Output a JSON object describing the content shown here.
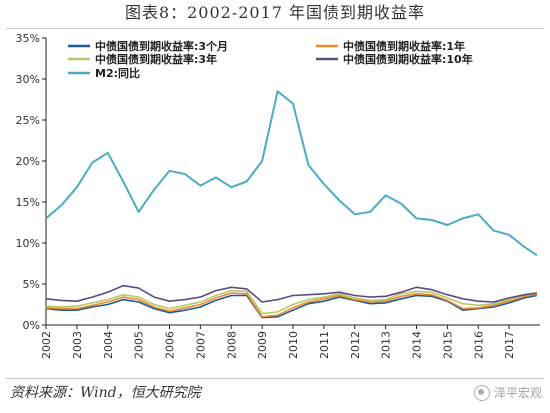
{
  "figure": {
    "title": "图表8：2002-2017 年国债到期收益率",
    "source": "资料来源：Wind，恒大研究院",
    "watermark": "泽平宏观"
  },
  "chart_data": {
    "type": "line",
    "title": "",
    "xlabel": "",
    "ylabel": "",
    "ylim": [
      0,
      35
    ],
    "yticks": [
      "0%",
      "5%",
      "10%",
      "15%",
      "20%",
      "25%",
      "30%",
      "35%"
    ],
    "ytick_values": [
      0,
      5,
      10,
      15,
      20,
      25,
      30,
      35
    ],
    "xlim": [
      2002,
      2018
    ],
    "xticks": [
      "2002",
      "2003",
      "2004",
      "2005",
      "2006",
      "2007",
      "2008",
      "2009",
      "2010",
      "2011",
      "2012",
      "2013",
      "2014",
      "2015",
      "2016",
      "2017"
    ],
    "xtick_values": [
      2002,
      2003,
      2004,
      2005,
      2006,
      2007,
      2008,
      2009,
      2010,
      2011,
      2012,
      2013,
      2014,
      2015,
      2016,
      2017
    ],
    "grid": false,
    "legend_position": "top",
    "x": [
      2002.0,
      2002.5,
      2003.0,
      2003.5,
      2004.0,
      2004.5,
      2005.0,
      2005.5,
      2006.0,
      2006.5,
      2007.0,
      2007.5,
      2008.0,
      2008.5,
      2009.0,
      2009.5,
      2010.0,
      2010.5,
      2011.0,
      2011.5,
      2012.0,
      2012.5,
      2013.0,
      2013.5,
      2014.0,
      2014.5,
      2015.0,
      2015.5,
      2016.0,
      2016.5,
      2017.0,
      2017.5,
      2017.9
    ],
    "series": [
      {
        "name": "中债国债到期收益率:3个月",
        "color": "#1f5a96",
        "values": [
          2.0,
          1.8,
          1.8,
          2.2,
          2.5,
          3.1,
          2.8,
          2.0,
          1.5,
          1.8,
          2.2,
          3.0,
          3.6,
          3.6,
          0.9,
          1.0,
          1.8,
          2.6,
          2.9,
          3.4,
          3.0,
          2.6,
          2.7,
          3.2,
          3.6,
          3.5,
          2.9,
          1.8,
          2.0,
          2.2,
          2.7,
          3.3,
          3.6
        ]
      },
      {
        "name": "中债国债到期收益率:1年",
        "color": "#ee8a2a",
        "values": [
          2.1,
          2.0,
          2.0,
          2.4,
          2.8,
          3.4,
          3.1,
          2.2,
          1.7,
          2.1,
          2.5,
          3.3,
          3.9,
          3.8,
          1.0,
          1.2,
          2.1,
          2.8,
          3.2,
          3.6,
          3.1,
          2.8,
          2.9,
          3.5,
          3.8,
          3.7,
          3.0,
          2.0,
          2.1,
          2.4,
          2.9,
          3.5,
          3.8
        ]
      },
      {
        "name": "中债国债到期收益率:3年",
        "color": "#b5c96a",
        "values": [
          2.3,
          2.2,
          2.3,
          2.7,
          3.1,
          3.7,
          3.4,
          2.5,
          2.0,
          2.4,
          2.8,
          3.6,
          4.2,
          4.1,
          1.4,
          1.6,
          2.5,
          3.1,
          3.4,
          3.8,
          3.3,
          3.0,
          3.1,
          3.8,
          4.1,
          4.0,
          3.3,
          2.6,
          2.4,
          2.6,
          3.1,
          3.7,
          3.9
        ]
      },
      {
        "name": "中债国债到期收益率:10年",
        "color": "#5d4b86",
        "values": [
          3.2,
          3.0,
          2.9,
          3.4,
          4.0,
          4.8,
          4.5,
          3.4,
          2.9,
          3.1,
          3.4,
          4.2,
          4.6,
          4.4,
          2.8,
          3.1,
          3.6,
          3.7,
          3.8,
          4.0,
          3.6,
          3.4,
          3.5,
          4.0,
          4.6,
          4.3,
          3.7,
          3.2,
          2.9,
          2.8,
          3.3,
          3.7,
          3.9
        ]
      },
      {
        "name": "M2:同比",
        "color": "#4bacc6",
        "values": [
          13.0,
          14.6,
          16.8,
          19.8,
          21.0,
          17.5,
          13.8,
          16.5,
          18.8,
          18.4,
          17.0,
          18.0,
          16.8,
          17.5,
          20.0,
          28.5,
          27.0,
          19.5,
          17.2,
          15.2,
          13.5,
          13.8,
          15.8,
          14.8,
          13.0,
          12.8,
          12.2,
          13.0,
          13.5,
          11.5,
          11.0,
          9.5,
          8.5
        ]
      }
    ]
  }
}
